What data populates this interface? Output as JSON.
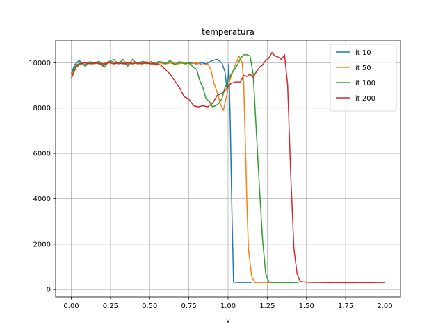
{
  "chart_data": {
    "type": "line",
    "title": "temperatura",
    "xlabel": "x",
    "ylabel": "",
    "xlim": [
      -0.1,
      2.1
    ],
    "ylim": [
      -330,
      10990
    ],
    "xticks": [
      0.0,
      0.25,
      0.5,
      0.75,
      1.0,
      1.25,
      1.5,
      1.75,
      2.0
    ],
    "xtick_labels": [
      "0.00",
      "0.25",
      "0.50",
      "0.75",
      "1.00",
      "1.25",
      "1.50",
      "1.75",
      "2.00"
    ],
    "yticks": [
      0,
      2000,
      4000,
      6000,
      8000,
      10000
    ],
    "ytick_labels": [
      "0",
      "2000",
      "4000",
      "6000",
      "8000",
      "10000"
    ],
    "grid": true,
    "legend_position": "top-right",
    "series": [
      {
        "name": "it 10",
        "color": "#1f77b4",
        "points": [
          [
            0.0,
            9500
          ],
          [
            0.02,
            9900
          ],
          [
            0.05,
            10100
          ],
          [
            0.08,
            9900
          ],
          [
            0.11,
            10000
          ],
          [
            0.14,
            9950
          ],
          [
            0.17,
            10050
          ],
          [
            0.2,
            9850
          ],
          [
            0.23,
            10000
          ],
          [
            0.26,
            10050
          ],
          [
            0.3,
            9950
          ],
          [
            0.33,
            10000
          ],
          [
            0.36,
            9900
          ],
          [
            0.4,
            10050
          ],
          [
            0.43,
            9950
          ],
          [
            0.46,
            10050
          ],
          [
            0.5,
            9950
          ],
          [
            0.53,
            10000
          ],
          [
            0.56,
            10050
          ],
          [
            0.6,
            9950
          ],
          [
            0.63,
            10000
          ],
          [
            0.66,
            9950
          ],
          [
            0.7,
            10000
          ],
          [
            0.73,
            9950
          ],
          [
            0.76,
            10000
          ],
          [
            0.8,
            9950
          ],
          [
            0.83,
            10000
          ],
          [
            0.86,
            9950
          ],
          [
            0.9,
            10100
          ],
          [
            0.93,
            10150
          ],
          [
            0.96,
            10000
          ],
          [
            0.98,
            9600
          ],
          [
            0.995,
            8700
          ],
          [
            1.005,
            9950
          ],
          [
            1.015,
            7000
          ],
          [
            1.025,
            3300
          ],
          [
            1.035,
            320
          ],
          [
            1.06,
            310
          ],
          [
            1.1,
            310
          ],
          [
            1.15,
            310
          ]
        ]
      },
      {
        "name": "it 50",
        "color": "#ff7f0e",
        "points": [
          [
            0.0,
            9400
          ],
          [
            0.03,
            9850
          ],
          [
            0.06,
            9950
          ],
          [
            0.09,
            10000
          ],
          [
            0.12,
            9950
          ],
          [
            0.16,
            10000
          ],
          [
            0.2,
            9950
          ],
          [
            0.24,
            10050
          ],
          [
            0.28,
            9950
          ],
          [
            0.32,
            10050
          ],
          [
            0.36,
            9950
          ],
          [
            0.4,
            10000
          ],
          [
            0.44,
            9950
          ],
          [
            0.48,
            10050
          ],
          [
            0.52,
            9950
          ],
          [
            0.56,
            10000
          ],
          [
            0.6,
            9950
          ],
          [
            0.64,
            10000
          ],
          [
            0.68,
            9950
          ],
          [
            0.72,
            10000
          ],
          [
            0.76,
            9950
          ],
          [
            0.8,
            10000
          ],
          [
            0.84,
            9900
          ],
          [
            0.87,
            9950
          ],
          [
            0.89,
            9700
          ],
          [
            0.91,
            9100
          ],
          [
            0.93,
            8700
          ],
          [
            0.95,
            8200
          ],
          [
            0.97,
            7900
          ],
          [
            0.99,
            8500
          ],
          [
            1.01,
            9200
          ],
          [
            1.04,
            9800
          ],
          [
            1.07,
            10300
          ],
          [
            1.09,
            10000
          ],
          [
            1.1,
            9100
          ],
          [
            1.11,
            6500
          ],
          [
            1.12,
            3800
          ],
          [
            1.13,
            1800
          ],
          [
            1.15,
            600
          ],
          [
            1.17,
            300
          ],
          [
            1.2,
            310
          ],
          [
            1.25,
            310
          ],
          [
            1.3,
            300
          ]
        ]
      },
      {
        "name": "it 100",
        "color": "#2ca02c",
        "points": [
          [
            0.0,
            9500
          ],
          [
            0.03,
            9900
          ],
          [
            0.06,
            10000
          ],
          [
            0.09,
            9850
          ],
          [
            0.12,
            10050
          ],
          [
            0.15,
            9950
          ],
          [
            0.18,
            10050
          ],
          [
            0.21,
            9800
          ],
          [
            0.24,
            10050
          ],
          [
            0.27,
            10150
          ],
          [
            0.3,
            9950
          ],
          [
            0.33,
            10150
          ],
          [
            0.36,
            9850
          ],
          [
            0.39,
            10150
          ],
          [
            0.42,
            9950
          ],
          [
            0.45,
            10050
          ],
          [
            0.48,
            9950
          ],
          [
            0.51,
            10050
          ],
          [
            0.54,
            9900
          ],
          [
            0.57,
            10050
          ],
          [
            0.6,
            9950
          ],
          [
            0.63,
            10100
          ],
          [
            0.66,
            9900
          ],
          [
            0.69,
            10050
          ],
          [
            0.72,
            9950
          ],
          [
            0.75,
            10000
          ],
          [
            0.78,
            9800
          ],
          [
            0.8,
            9700
          ],
          [
            0.82,
            9200
          ],
          [
            0.84,
            8900
          ],
          [
            0.86,
            8400
          ],
          [
            0.88,
            8300
          ],
          [
            0.9,
            8050
          ],
          [
            0.92,
            8100
          ],
          [
            0.94,
            8200
          ],
          [
            0.96,
            8400
          ],
          [
            0.98,
            8900
          ],
          [
            1.0,
            9200
          ],
          [
            1.02,
            9500
          ],
          [
            1.04,
            9700
          ],
          [
            1.06,
            9900
          ],
          [
            1.08,
            10200
          ],
          [
            1.1,
            10350
          ],
          [
            1.12,
            10350
          ],
          [
            1.14,
            10300
          ],
          [
            1.16,
            9500
          ],
          [
            1.18,
            7000
          ],
          [
            1.2,
            4500
          ],
          [
            1.22,
            2200
          ],
          [
            1.24,
            700
          ],
          [
            1.26,
            330
          ],
          [
            1.3,
            300
          ],
          [
            1.35,
            310
          ],
          [
            1.4,
            300
          ],
          [
            1.45,
            310
          ]
        ]
      },
      {
        "name": "it 200",
        "color": "#d62728",
        "points": [
          [
            0.0,
            9300
          ],
          [
            0.03,
            9800
          ],
          [
            0.06,
            9950
          ],
          [
            0.09,
            10000
          ],
          [
            0.12,
            9950
          ],
          [
            0.15,
            10000
          ],
          [
            0.18,
            9950
          ],
          [
            0.21,
            9950
          ],
          [
            0.24,
            10000
          ],
          [
            0.27,
            9950
          ],
          [
            0.3,
            10000
          ],
          [
            0.33,
            9950
          ],
          [
            0.36,
            10000
          ],
          [
            0.39,
            9950
          ],
          [
            0.42,
            10000
          ],
          [
            0.45,
            9950
          ],
          [
            0.48,
            10000
          ],
          [
            0.51,
            9950
          ],
          [
            0.54,
            9950
          ],
          [
            0.57,
            9900
          ],
          [
            0.6,
            9700
          ],
          [
            0.63,
            9500
          ],
          [
            0.66,
            9200
          ],
          [
            0.69,
            8900
          ],
          [
            0.72,
            8500
          ],
          [
            0.75,
            8400
          ],
          [
            0.78,
            8100
          ],
          [
            0.81,
            8050
          ],
          [
            0.84,
            8100
          ],
          [
            0.87,
            8050
          ],
          [
            0.9,
            8200
          ],
          [
            0.93,
            8550
          ],
          [
            0.96,
            8650
          ],
          [
            0.99,
            8850
          ],
          [
            1.02,
            9100
          ],
          [
            1.05,
            9150
          ],
          [
            1.08,
            9150
          ],
          [
            1.1,
            9450
          ],
          [
            1.12,
            9400
          ],
          [
            1.14,
            9500
          ],
          [
            1.16,
            9350
          ],
          [
            1.18,
            9600
          ],
          [
            1.2,
            9800
          ],
          [
            1.22,
            9900
          ],
          [
            1.24,
            10100
          ],
          [
            1.26,
            10200
          ],
          [
            1.28,
            10450
          ],
          [
            1.3,
            10300
          ],
          [
            1.32,
            10250
          ],
          [
            1.34,
            10150
          ],
          [
            1.36,
            10350
          ],
          [
            1.38,
            9000
          ],
          [
            1.4,
            5000
          ],
          [
            1.42,
            1800
          ],
          [
            1.44,
            700
          ],
          [
            1.46,
            350
          ],
          [
            1.5,
            320
          ],
          [
            1.55,
            310
          ],
          [
            1.6,
            310
          ],
          [
            1.65,
            300
          ],
          [
            1.7,
            310
          ],
          [
            1.75,
            300
          ],
          [
            1.8,
            300
          ],
          [
            1.85,
            310
          ],
          [
            1.9,
            300
          ],
          [
            1.95,
            310
          ],
          [
            2.0,
            310
          ]
        ]
      }
    ]
  }
}
